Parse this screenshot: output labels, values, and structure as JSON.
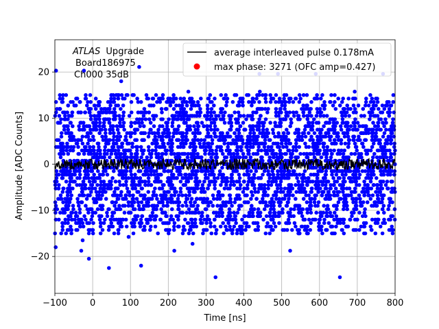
{
  "chart_data": {
    "type": "scatter",
    "title": "",
    "xlabel": "Time [ns]",
    "ylabel": "Amplitude [ADC Counts]",
    "xlim": [
      -100,
      800
    ],
    "ylim": [
      -28,
      27
    ],
    "xticks": [
      -100,
      0,
      100,
      200,
      300,
      400,
      500,
      600,
      700,
      800
    ],
    "yticks": [
      -20,
      -10,
      0,
      10,
      20
    ],
    "grid": true,
    "legend_position": "top-right",
    "annotation": {
      "experiment": "ATLAS",
      "label": "Upgrade",
      "board": "Board186975",
      "channel": "Ch000 35dB"
    },
    "series": [
      {
        "name": "max phase: 3271 (OFC amp=0.427)",
        "kind": "scatter",
        "color": "#0000ff",
        "marker": "circle",
        "x_range": [
          -100,
          800
        ],
        "values_quantized_to": 0.75,
        "core_range": [
          -15,
          15
        ],
        "outlier_points": [
          {
            "x": -97,
            "y": 20.3
          },
          {
            "x": -23,
            "y": 20.3
          },
          {
            "x": 123,
            "y": 21.1
          },
          {
            "x": 441,
            "y": 19.6
          },
          {
            "x": 490,
            "y": 19.6
          },
          {
            "x": 590,
            "y": 19.6
          },
          {
            "x": 768,
            "y": 19.6
          },
          {
            "x": 325,
            "y": -24.5
          },
          {
            "x": 654,
            "y": -24.5
          },
          {
            "x": 43,
            "y": -22.5
          },
          {
            "x": 128,
            "y": -22.0
          },
          {
            "x": -10,
            "y": -20.5
          }
        ]
      },
      {
        "name": "average interleaved pulse 0.178mA",
        "kind": "line",
        "color": "#000000",
        "mean": 0,
        "noise_amplitude": 1.2
      }
    ]
  }
}
